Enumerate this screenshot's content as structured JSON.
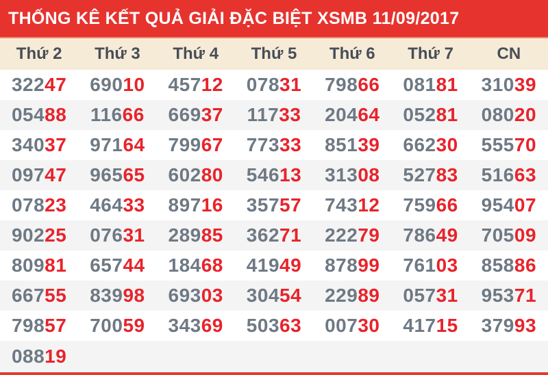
{
  "title": "THỐNG KÊ KẾT QUẢ GIẢI ĐẶC BIỆT XSMB 11/09/2017",
  "colors": {
    "title_bg": "#e6332e",
    "title_text": "#ffffff",
    "column_header_bg": "#f6ebd7",
    "column_header_text": "#474e57",
    "digit_prefix": "#6e7984",
    "digit_suffix": "#e8232b",
    "row_bg": "#ffffff",
    "row_alt_bg": "#f4f4f4",
    "bottom_border": "#e23b33"
  },
  "table": {
    "columns": [
      "Thứ 2",
      "Thứ 3",
      "Thứ 4",
      "Thứ 5",
      "Thứ 6",
      "Thứ 7",
      "CN"
    ],
    "prefix_digits": 3,
    "rows": [
      [
        "32247",
        "69010",
        "45712",
        "07831",
        "79866",
        "08181",
        "31039"
      ],
      [
        "05488",
        "11666",
        "66937",
        "11733",
        "20464",
        "05281",
        "08020"
      ],
      [
        "34037",
        "97164",
        "79967",
        "77333",
        "85139",
        "66230",
        "55570"
      ],
      [
        "09747",
        "96565",
        "60280",
        "54613",
        "31308",
        "52783",
        "51663"
      ],
      [
        "07823",
        "46433",
        "89716",
        "35757",
        "74312",
        "75966",
        "95407"
      ],
      [
        "90225",
        "07631",
        "28985",
        "36271",
        "22279",
        "78649",
        "70509"
      ],
      [
        "80981",
        "65744",
        "18468",
        "41949",
        "87899",
        "76103",
        "85886"
      ],
      [
        "66755",
        "83998",
        "69303",
        "30454",
        "22989",
        "05731",
        "95371"
      ],
      [
        "79857",
        "70059",
        "34369",
        "50363",
        "00730",
        "41715",
        "37993"
      ],
      [
        "08819",
        "",
        "",
        "",
        "",
        "",
        ""
      ]
    ]
  }
}
